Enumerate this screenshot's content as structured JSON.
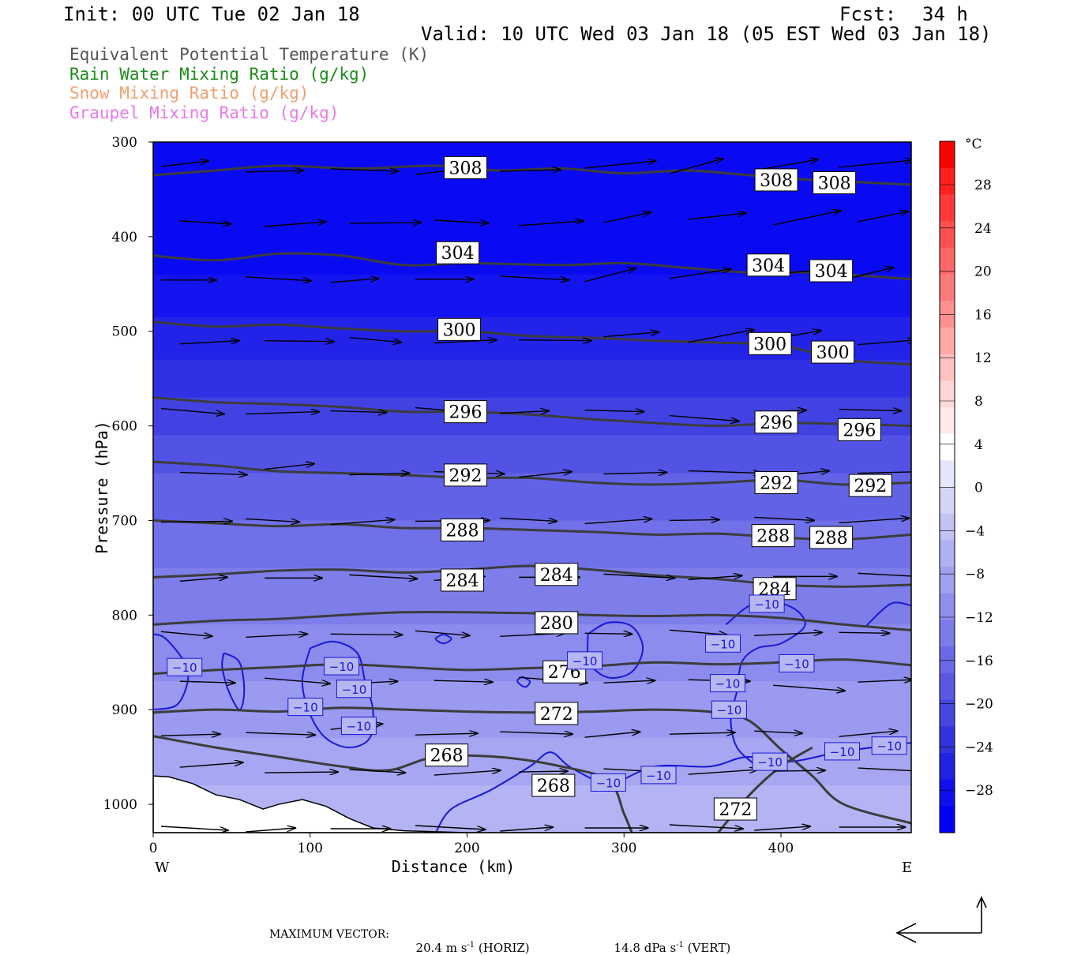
{
  "header": {
    "init": "Init: 00 UTC Tue 02 Jan 18",
    "fcst_label": "Fcst:",
    "fcst_value": "34 h",
    "valid": "Valid: 10 UTC Wed 03 Jan 18 (05 EST Wed 03 Jan 18)"
  },
  "legend": [
    {
      "text": "Equivalent Potential Temperature (K)",
      "color": "#555555"
    },
    {
      "text": "Rain Water Mixing Ratio (g/kg)",
      "color": "#1a8c1a"
    },
    {
      "text": "Snow Mixing Ratio (g/kg)",
      "color": "#f0a070"
    },
    {
      "text": "Graupel Mixing Ratio (g/kg)",
      "color": "#e87ae8"
    }
  ],
  "footer": {
    "max_vector_label": "MAXIMUM VECTOR:",
    "horiz_prefix": "20.4 m s",
    "horiz_suffix": " (HORIZ)",
    "vert_prefix": "14.8 dPa s",
    "vert_suffix": " (VERT)",
    "exponent": "-1"
  },
  "chart_data": {
    "type": "cross-section",
    "xlabel": "Distance (km)",
    "ylabel": "Pressure (hPa)",
    "xlim": [
      0,
      483
    ],
    "ylim": [
      1030,
      300
    ],
    "x_ticks": [
      0,
      100,
      200,
      300,
      400
    ],
    "y_ticks": [
      300,
      400,
      500,
      600,
      700,
      800,
      900,
      1000
    ],
    "x_end_labels": {
      "left": "W",
      "right": "E"
    },
    "colorbar": {
      "unit": "°C",
      "tick_labels": [
        "28",
        "24",
        "20",
        "16",
        "12",
        "8",
        "4",
        "0",
        "−4",
        "−8",
        "−12",
        "−16",
        "−20",
        "−24",
        "−28"
      ],
      "colors": [
        "#ff0000",
        "#ff2020",
        "#ff3a3a",
        "#ff5050",
        "#ff6666",
        "#ff7a7a",
        "#ff9090",
        "#ffa8a8",
        "#ffc0c0",
        "#ffd6d6",
        "#ffeaea",
        "#ffffff",
        "#e6e6fb",
        "#d4d4f8",
        "#c2c2f5",
        "#b0b0f2",
        "#a0a0ef",
        "#8e8eec",
        "#7c7ce9",
        "#6a6ae6",
        "#5858e3",
        "#4646e0",
        "#3434de",
        "#2222e0",
        "#1010ee",
        "#0000ff"
      ]
    },
    "theta_e_contours": [
      {
        "level": 308,
        "points": [
          [
            0,
            335
          ],
          [
            40,
            330
          ],
          [
            80,
            325
          ],
          [
            130,
            328
          ],
          [
            180,
            325
          ],
          [
            220,
            330
          ],
          [
            260,
            328
          ],
          [
            300,
            333
          ],
          [
            340,
            330
          ],
          [
            380,
            335
          ],
          [
            420,
            340
          ],
          [
            483,
            345
          ]
        ]
      },
      {
        "level": 304,
        "points": [
          [
            0,
            420
          ],
          [
            40,
            425
          ],
          [
            80,
            418
          ],
          [
            120,
            420
          ],
          [
            160,
            430
          ],
          [
            200,
            428
          ],
          [
            260,
            430
          ],
          [
            300,
            428
          ],
          [
            340,
            433
          ],
          [
            380,
            438
          ],
          [
            420,
            438
          ],
          [
            483,
            445
          ]
        ]
      },
      {
        "level": 300,
        "points": [
          [
            0,
            490
          ],
          [
            40,
            495
          ],
          [
            80,
            493
          ],
          [
            120,
            497
          ],
          [
            160,
            500
          ],
          [
            200,
            500
          ],
          [
            240,
            505
          ],
          [
            280,
            507
          ],
          [
            320,
            510
          ],
          [
            360,
            512
          ],
          [
            400,
            515
          ],
          [
            440,
            530
          ],
          [
            483,
            535
          ]
        ]
      },
      {
        "level": 296,
        "points": [
          [
            0,
            570
          ],
          [
            40,
            575
          ],
          [
            80,
            577
          ],
          [
            120,
            580
          ],
          [
            160,
            585
          ],
          [
            200,
            585
          ],
          [
            240,
            588
          ],
          [
            280,
            593
          ],
          [
            320,
            597
          ],
          [
            360,
            600
          ],
          [
            400,
            597
          ],
          [
            440,
            598
          ],
          [
            483,
            600
          ]
        ]
      },
      {
        "level": 292,
        "points": [
          [
            0,
            638
          ],
          [
            40,
            642
          ],
          [
            80,
            648
          ],
          [
            120,
            650
          ],
          [
            160,
            652
          ],
          [
            200,
            655
          ],
          [
            240,
            655
          ],
          [
            280,
            660
          ],
          [
            320,
            662
          ],
          [
            360,
            660
          ],
          [
            400,
            657
          ],
          [
            440,
            662
          ],
          [
            483,
            660
          ]
        ]
      },
      {
        "level": 288,
        "points": [
          [
            0,
            700
          ],
          [
            40,
            703
          ],
          [
            80,
            706
          ],
          [
            120,
            704
          ],
          [
            160,
            708
          ],
          [
            200,
            708
          ],
          [
            240,
            710
          ],
          [
            280,
            712
          ],
          [
            320,
            715
          ],
          [
            360,
            714
          ],
          [
            400,
            718
          ],
          [
            440,
            720
          ],
          [
            483,
            715
          ]
        ]
      },
      {
        "level": 284,
        "points": [
          [
            0,
            760
          ],
          [
            40,
            757
          ],
          [
            80,
            753
          ],
          [
            120,
            752
          ],
          [
            160,
            755
          ],
          [
            200,
            752
          ],
          [
            240,
            748
          ],
          [
            280,
            752
          ],
          [
            320,
            758
          ],
          [
            360,
            762
          ],
          [
            400,
            768
          ],
          [
            440,
            770
          ],
          [
            483,
            768
          ]
        ]
      },
      {
        "level": 280,
        "points": [
          [
            0,
            810
          ],
          [
            40,
            806
          ],
          [
            80,
            804
          ],
          [
            120,
            800
          ],
          [
            160,
            797
          ],
          [
            200,
            797
          ],
          [
            240,
            798
          ],
          [
            280,
            800
          ],
          [
            320,
            801
          ],
          [
            360,
            800
          ],
          [
            400,
            803
          ],
          [
            440,
            810
          ],
          [
            483,
            816
          ]
        ]
      },
      {
        "level": 276,
        "points": [
          [
            0,
            862
          ],
          [
            40,
            858
          ],
          [
            80,
            855
          ],
          [
            120,
            852
          ],
          [
            160,
            855
          ],
          [
            200,
            858
          ],
          [
            240,
            856
          ],
          [
            280,
            854
          ],
          [
            320,
            850
          ],
          [
            360,
            852
          ],
          [
            400,
            850
          ],
          [
            440,
            847
          ],
          [
            483,
            853
          ]
        ]
      },
      {
        "level": 272,
        "points": [
          [
            0,
            903
          ],
          [
            40,
            900
          ],
          [
            80,
            902
          ],
          [
            120,
            898
          ],
          [
            160,
            900
          ],
          [
            200,
            902
          ],
          [
            240,
            903
          ],
          [
            280,
            902
          ],
          [
            320,
            900
          ],
          [
            360,
            903
          ],
          [
            380,
            912
          ],
          [
            400,
            942
          ],
          [
            420,
            970
          ],
          [
            440,
            1000
          ],
          [
            483,
            1020
          ]
        ]
      },
      {
        "level": 268,
        "points": [
          [
            0,
            928
          ],
          [
            40,
            940
          ],
          [
            80,
            950
          ],
          [
            120,
            960
          ],
          [
            150,
            964
          ],
          [
            180,
            950
          ],
          [
            220,
            950
          ],
          [
            260,
            960
          ],
          [
            290,
            975
          ],
          [
            300,
            1010
          ],
          [
            305,
            1030
          ]
        ]
      },
      {
        "level": 272,
        "points": [
          [
            360,
            1030
          ],
          [
            380,
            990
          ],
          [
            400,
            960
          ],
          [
            420,
            940
          ]
        ]
      }
    ],
    "theta_e_labels": [
      {
        "level": 308,
        "x": 199,
        "p": 327
      },
      {
        "level": 308,
        "x": 397,
        "p": 340
      },
      {
        "level": 308,
        "x": 434,
        "p": 343
      },
      {
        "level": 304,
        "x": 194,
        "p": 417
      },
      {
        "level": 304,
        "x": 392,
        "p": 430
      },
      {
        "level": 304,
        "x": 432,
        "p": 436
      },
      {
        "level": 300,
        "x": 195,
        "p": 498
      },
      {
        "level": 300,
        "x": 393,
        "p": 513
      },
      {
        "level": 300,
        "x": 433,
        "p": 522
      },
      {
        "level": 296,
        "x": 199,
        "p": 585
      },
      {
        "level": 296,
        "x": 397,
        "p": 596
      },
      {
        "level": 296,
        "x": 450,
        "p": 604
      },
      {
        "level": 292,
        "x": 199,
        "p": 652
      },
      {
        "level": 292,
        "x": 397,
        "p": 660
      },
      {
        "level": 292,
        "x": 457,
        "p": 663
      },
      {
        "level": 288,
        "x": 197,
        "p": 710
      },
      {
        "level": 288,
        "x": 395,
        "p": 716
      },
      {
        "level": 288,
        "x": 432,
        "p": 718
      },
      {
        "level": 284,
        "x": 197,
        "p": 763
      },
      {
        "level": 284,
        "x": 257,
        "p": 757
      },
      {
        "level": 284,
        "x": 396,
        "p": 772
      },
      {
        "level": 280,
        "x": 257,
        "p": 808
      },
      {
        "level": 276,
        "x": 262,
        "p": 860
      },
      {
        "level": 272,
        "x": 257,
        "p": 904
      },
      {
        "level": 268,
        "x": 187,
        "p": 948
      },
      {
        "level": 268,
        "x": 255,
        "p": 980
      },
      {
        "level": 272,
        "x": 371,
        "p": 1005
      }
    ],
    "temperature_fill_bands": [
      {
        "p": 300,
        "color": "#0a0af2"
      },
      {
        "p": 440,
        "color": "#1414f0"
      },
      {
        "p": 485,
        "color": "#2222e8"
      },
      {
        "p": 530,
        "color": "#3030e4"
      },
      {
        "p": 570,
        "color": "#4242e2"
      },
      {
        "p": 610,
        "color": "#5252e4"
      },
      {
        "p": 650,
        "color": "#6262e6"
      },
      {
        "p": 700,
        "color": "#7070e8"
      },
      {
        "p": 750,
        "color": "#7e7eea"
      },
      {
        "p": 810,
        "color": "#8c8cee"
      },
      {
        "p": 870,
        "color": "#9a9af0"
      },
      {
        "p": 930,
        "color": "#a6a6f2"
      },
      {
        "p": 980,
        "color": "#b4b4f4"
      }
    ],
    "minus10_labels": [
      {
        "text": "−10",
        "x": 20,
        "p": 855
      },
      {
        "text": "−10",
        "x": 120,
        "p": 854
      },
      {
        "text": "−10",
        "x": 128,
        "p": 878
      },
      {
        "text": "−10",
        "x": 97,
        "p": 897
      },
      {
        "text": "−10",
        "x": 131,
        "p": 917
      },
      {
        "text": "−10",
        "x": 275,
        "p": 848
      },
      {
        "text": "−10",
        "x": 363,
        "p": 830
      },
      {
        "text": "−10",
        "x": 366,
        "p": 872
      },
      {
        "text": "−10",
        "x": 367,
        "p": 900
      },
      {
        "text": "−10",
        "x": 391,
        "p": 788
      },
      {
        "text": "−10",
        "x": 410,
        "p": 851
      },
      {
        "text": "−10",
        "x": 393,
        "p": 955
      },
      {
        "text": "−10",
        "x": 439,
        "p": 944
      },
      {
        "text": "−10",
        "x": 469,
        "p": 938
      },
      {
        "text": "−10",
        "x": 290,
        "p": 977
      },
      {
        "text": "−10",
        "x": 322,
        "p": 969
      }
    ],
    "vector_scale_ref": {
      "horiz_ms": 20.4,
      "vert_dpa_s": 14.8
    }
  }
}
